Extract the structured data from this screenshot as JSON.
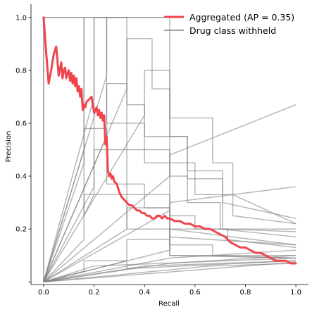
{
  "chart_data": {
    "type": "line",
    "title": "",
    "xlabel": "Recall",
    "ylabel": "Precision",
    "xlim": [
      -0.05,
      1.05
    ],
    "ylim": [
      -0.01,
      1.05
    ],
    "xticks": [
      0.0,
      0.2,
      0.4,
      0.6,
      0.8,
      1.0
    ],
    "xtick_labels": [
      "0.0",
      "0.2",
      "0.4",
      "0.6",
      "0.8",
      "1.0"
    ],
    "yticks": [
      0.2,
      0.4,
      0.6,
      0.8,
      1.0
    ],
    "ytick_labels": [
      "0.2",
      "0.4",
      "0.6",
      "0.8",
      "1.0"
    ],
    "grid": false,
    "legend_position": "top-right",
    "legend": [
      {
        "label": "Aggregated (AP = 0.35)",
        "color": "#f0454c"
      },
      {
        "label": "Drug class withheld",
        "color": "#808080"
      }
    ],
    "aggregated": {
      "name": "Aggregated (AP = 0.35)",
      "color": "#f0454c",
      "x": [
        0.0,
        0.01,
        0.02,
        0.03,
        0.04,
        0.05,
        0.06,
        0.07,
        0.075,
        0.08,
        0.085,
        0.09,
        0.095,
        0.1,
        0.105,
        0.11,
        0.115,
        0.12,
        0.125,
        0.13,
        0.135,
        0.14,
        0.145,
        0.15,
        0.155,
        0.16,
        0.165,
        0.17,
        0.18,
        0.19,
        0.2,
        0.21,
        0.215,
        0.22,
        0.225,
        0.23,
        0.235,
        0.24,
        0.245,
        0.25,
        0.255,
        0.26,
        0.265,
        0.27,
        0.275,
        0.28,
        0.29,
        0.3,
        0.31,
        0.32,
        0.33,
        0.34,
        0.35,
        0.36,
        0.37,
        0.38,
        0.39,
        0.4,
        0.41,
        0.42,
        0.43,
        0.44,
        0.45,
        0.46,
        0.47,
        0.48,
        0.49,
        0.5,
        0.52,
        0.54,
        0.56,
        0.58,
        0.6,
        0.62,
        0.64,
        0.66,
        0.68,
        0.7,
        0.72,
        0.74,
        0.76,
        0.78,
        0.8,
        0.82,
        0.84,
        0.86,
        0.88,
        0.9,
        0.92,
        0.94,
        0.96,
        0.98,
        1.0
      ],
      "y": [
        1.0,
        0.87,
        0.75,
        0.8,
        0.86,
        0.89,
        0.78,
        0.83,
        0.77,
        0.8,
        0.81,
        0.77,
        0.79,
        0.8,
        0.76,
        0.79,
        0.75,
        0.78,
        0.74,
        0.77,
        0.72,
        0.74,
        0.7,
        0.73,
        0.65,
        0.67,
        0.66,
        0.68,
        0.69,
        0.7,
        0.64,
        0.66,
        0.63,
        0.65,
        0.62,
        0.64,
        0.61,
        0.63,
        0.52,
        0.55,
        0.42,
        0.4,
        0.41,
        0.39,
        0.4,
        0.38,
        0.37,
        0.34,
        0.32,
        0.31,
        0.3,
        0.29,
        0.29,
        0.28,
        0.27,
        0.27,
        0.26,
        0.26,
        0.25,
        0.25,
        0.24,
        0.24,
        0.25,
        0.25,
        0.24,
        0.25,
        0.24,
        0.24,
        0.23,
        0.23,
        0.22,
        0.22,
        0.21,
        0.21,
        0.2,
        0.2,
        0.19,
        0.18,
        0.17,
        0.15,
        0.14,
        0.13,
        0.13,
        0.12,
        0.11,
        0.11,
        0.1,
        0.09,
        0.08,
        0.08,
        0.08,
        0.07,
        0.07
      ]
    },
    "withheld_series": [
      {
        "x": [
          0.0,
          0.0,
          0.5,
          0.5,
          1.0
        ],
        "y": [
          0.0,
          1.0,
          1.0,
          0.1,
          0.09
        ]
      },
      {
        "x": [
          0.0,
          0.16,
          0.16,
          0.5
        ],
        "y": [
          0.0,
          0.5,
          1.0,
          1.0
        ]
      },
      {
        "x": [
          0.0,
          0.0,
          0.16,
          0.16,
          0.2,
          0.2,
          0.33
        ],
        "y": [
          0.0,
          1.0,
          1.0,
          0.25,
          0.33,
          1.0,
          1.0
        ]
      },
      {
        "x": [
          0.0,
          0.2,
          0.2,
          0.25,
          0.25,
          0.4,
          0.4,
          0.6,
          0.6,
          0.75,
          0.75,
          1.0
        ],
        "y": [
          0.0,
          0.7,
          1.0,
          1.0,
          0.6,
          0.6,
          0.45,
          0.45,
          0.33,
          0.33,
          0.25,
          0.22
        ]
      },
      {
        "x": [
          0.0,
          0.25,
          0.25,
          0.33,
          0.33,
          0.4,
          0.4,
          0.57,
          0.57,
          0.71,
          0.71,
          1.0
        ],
        "y": [
          0.0,
          0.78,
          1.0,
          1.0,
          0.67,
          0.67,
          0.55,
          0.55,
          0.42,
          0.42,
          0.3,
          0.24
        ]
      },
      {
        "x": [
          0.0,
          0.33,
          0.33,
          0.43,
          0.43,
          0.5,
          0.5,
          0.57,
          0.57,
          0.71,
          0.71,
          1.0
        ],
        "y": [
          0.0,
          0.73,
          0.92,
          0.92,
          0.73,
          0.73,
          0.55,
          0.55,
          0.39,
          0.39,
          0.2,
          0.19
        ]
      },
      {
        "x": [
          0.0,
          0.4,
          0.4,
          0.5,
          0.5,
          0.67,
          0.67,
          0.75,
          0.75,
          1.0
        ],
        "y": [
          0.0,
          0.63,
          0.8,
          0.8,
          0.62,
          0.62,
          0.45,
          0.45,
          0.33,
          0.22
        ]
      },
      {
        "x": [
          0.0,
          0.25,
          0.25,
          0.33,
          0.33,
          0.5,
          0.5,
          0.57,
          0.57,
          0.7,
          0.7,
          1.0
        ],
        "y": [
          0.0,
          0.55,
          0.75,
          0.75,
          0.5,
          0.5,
          0.4,
          0.4,
          0.3,
          0.3,
          0.2,
          0.17
        ]
      },
      {
        "x": [
          0.0,
          0.16,
          0.16,
          0.25,
          0.25,
          0.4,
          0.4,
          0.5,
          0.5,
          1.0
        ],
        "y": [
          0.0,
          0.45,
          0.58,
          0.58,
          0.37,
          0.37,
          0.28,
          0.28,
          0.2,
          0.14
        ]
      },
      {
        "x": [
          0.0,
          0.2,
          0.2,
          0.33,
          0.33,
          0.5,
          0.5,
          0.6,
          0.6,
          0.73,
          0.73,
          1.0
        ],
        "y": [
          0.0,
          0.36,
          0.5,
          0.5,
          0.33,
          0.33,
          0.25,
          0.25,
          0.2,
          0.2,
          0.16,
          0.13
        ]
      },
      {
        "x": [
          0.0,
          0.16,
          0.16,
          0.33,
          0.33,
          0.5,
          0.5,
          0.67,
          0.67,
          1.0
        ],
        "y": [
          0.0,
          0.16,
          0.33,
          0.33,
          0.2,
          0.2,
          0.14,
          0.14,
          0.1,
          0.09
        ]
      },
      {
        "x": [
          0.0,
          0.5,
          0.5,
          1.0
        ],
        "y": [
          0.0,
          0.4,
          0.48,
          0.67
        ]
      },
      {
        "x": [
          0.0,
          0.5,
          0.5,
          1.0
        ],
        "y": [
          0.0,
          0.27,
          0.3,
          0.36
        ]
      },
      {
        "x": [
          0.0,
          0.33,
          0.33,
          0.5,
          0.5,
          1.0
        ],
        "y": [
          0.0,
          0.2,
          0.28,
          0.28,
          0.17,
          0.14
        ]
      },
      {
        "x": [
          0.0,
          0.5,
          0.5,
          1.0
        ],
        "y": [
          0.0,
          0.12,
          0.2,
          0.2
        ]
      },
      {
        "x": [
          0.0,
          0.33,
          0.33,
          0.5,
          0.5,
          1.0
        ],
        "y": [
          0.0,
          0.08,
          0.16,
          0.16,
          0.1,
          0.1
        ]
      },
      {
        "x": [
          0.0,
          0.5,
          0.5,
          1.0
        ],
        "y": [
          0.0,
          0.09,
          0.09,
          0.12
        ]
      },
      {
        "x": [
          0.0,
          0.2,
          0.2,
          1.0
        ],
        "y": [
          0.0,
          0.06,
          0.06,
          0.09
        ]
      },
      {
        "x": [
          0.0,
          0.4,
          0.4,
          1.0
        ],
        "y": [
          0.0,
          0.06,
          0.06,
          0.08
        ]
      },
      {
        "x": [
          0.0,
          0.5,
          0.5,
          1.0
        ],
        "y": [
          0.0,
          0.07,
          0.07,
          0.1
        ]
      },
      {
        "x": [
          0.0,
          0.16,
          0.16,
          0.33,
          0.33,
          1.0
        ],
        "y": [
          0.0,
          0.04,
          0.08,
          0.08,
          0.05,
          0.08
        ]
      },
      {
        "x": [
          0.0,
          0.66,
          0.66,
          1.0
        ],
        "y": [
          0.0,
          0.06,
          0.06,
          0.07
        ]
      },
      {
        "x": [
          0.0,
          1.0
        ],
        "y": [
          0.0,
          0.075
        ]
      }
    ]
  }
}
